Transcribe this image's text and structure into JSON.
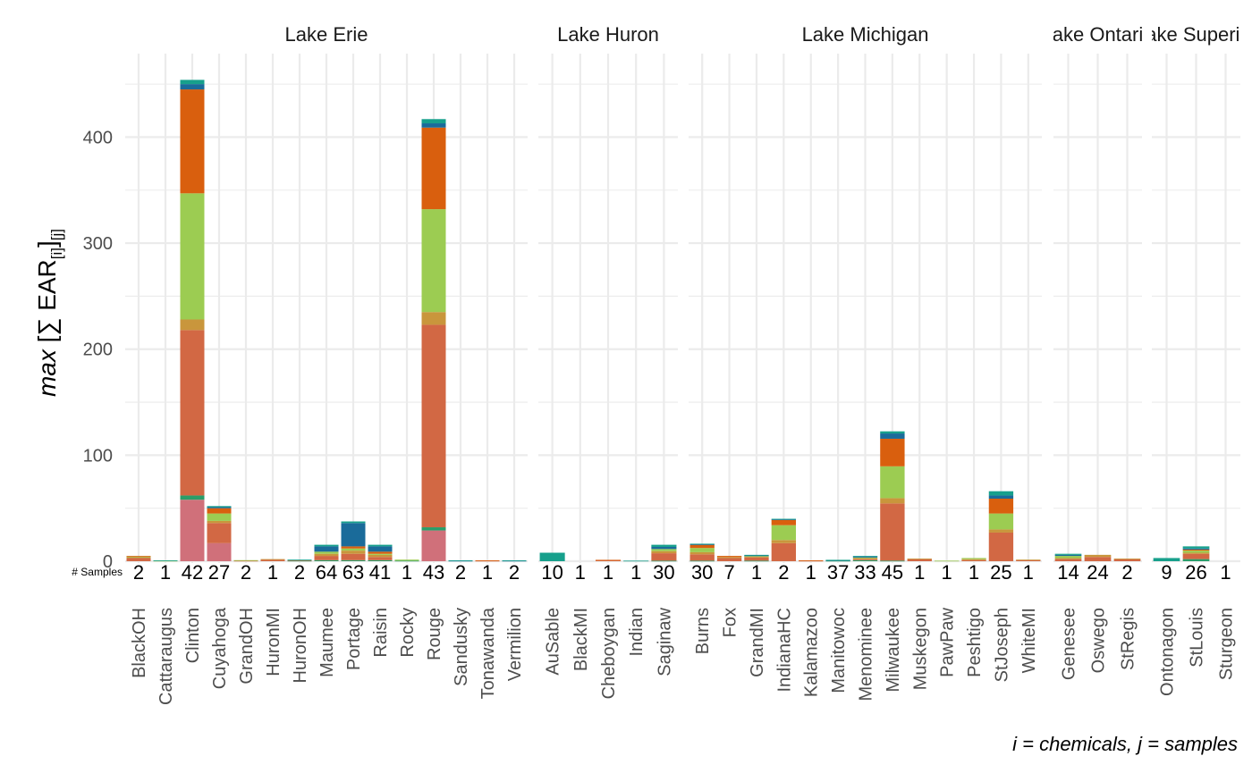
{
  "chart_data": {
    "type": "bar",
    "stacked": true,
    "ylabel_math": "max [∑ EAR[i]][j]",
    "caption": "i = chemicals, j = samples",
    "samples_label": "# Samples",
    "ylim": [
      0,
      470
    ],
    "yticks": [
      0,
      100,
      200,
      300,
      400
    ],
    "grid": true,
    "legend": "none",
    "colors": [
      "#d0707a",
      "#2a9d69",
      "#d26844",
      "#c9963c",
      "#9ccc52",
      "#d95f0e",
      "#1a6b9a",
      "#17a08c"
    ],
    "panels": [
      {
        "title": "Lake Erie",
        "sites": [
          {
            "name": "BlackOH",
            "samples": "2",
            "segments": [
              0,
              0,
              3,
              1,
              0.5,
              0.5,
              0,
              0
            ]
          },
          {
            "name": "Cattaraugus",
            "samples": "1",
            "segments": [
              0,
              0,
              0,
              0,
              0.5,
              0,
              0,
              0.3
            ]
          },
          {
            "name": "Clinton",
            "samples": "42",
            "segments": [
              58,
              4,
              156,
              10,
              119,
              98,
              5,
              4
            ]
          },
          {
            "name": "Cuyahoga",
            "samples": "27",
            "segments": [
              17,
              0,
              19,
              2,
              7,
              5,
              1,
              1
            ]
          },
          {
            "name": "GrandOH",
            "samples": "2",
            "segments": [
              0,
              0,
              0.5,
              0,
              0.5,
              0,
              0,
              0
            ]
          },
          {
            "name": "HuronMI",
            "samples": "1",
            "segments": [
              0,
              0,
              1.5,
              0.5,
              0,
              0,
              0,
              0
            ]
          },
          {
            "name": "HuronOH",
            "samples": "2",
            "segments": [
              0,
              0.5,
              0.5,
              0,
              0,
              0,
              0,
              0.5
            ]
          },
          {
            "name": "Maumee",
            "samples": "64",
            "segments": [
              0,
              1,
              4,
              2,
              2,
              0,
              5,
              1.5
            ]
          },
          {
            "name": "Portage",
            "samples": "63",
            "segments": [
              0,
              1,
              6,
              3,
              2,
              2,
              22,
              1.5
            ]
          },
          {
            "name": "Raisin",
            "samples": "41",
            "segments": [
              0,
              1,
              3,
              2,
              1,
              2,
              5,
              1.5
            ]
          },
          {
            "name": "Rocky",
            "samples": "1",
            "segments": [
              0,
              0.5,
              0,
              0,
              1,
              0,
              0,
              0
            ]
          },
          {
            "name": "Rouge",
            "samples": "43",
            "segments": [
              29,
              3,
              191,
              12,
              97,
              77,
              4,
              4
            ]
          },
          {
            "name": "Sandusky",
            "samples": "2",
            "segments": [
              0,
              0,
              0,
              0,
              0,
              0,
              0.5,
              0.3
            ]
          },
          {
            "name": "Tonawanda",
            "samples": "1",
            "segments": [
              0,
              0,
              0.5,
              0,
              0,
              0.3,
              0,
              0
            ]
          },
          {
            "name": "Vermilion",
            "samples": "2",
            "segments": [
              0,
              0,
              0,
              0,
              0,
              0,
              0.5,
              0.3
            ]
          }
        ]
      },
      {
        "title": "Lake Huron",
        "sites": [
          {
            "name": "AuSable",
            "samples": "10",
            "segments": [
              0,
              0,
              0,
              0,
              0,
              0,
              0,
              8
            ]
          },
          {
            "name": "BlackMI",
            "samples": "1",
            "segments": [
              0,
              0,
              0,
              0,
              0,
              0,
              0,
              0
            ]
          },
          {
            "name": "Cheboygan",
            "samples": "1",
            "segments": [
              0,
              0,
              1,
              0,
              0,
              0.3,
              0,
              0
            ]
          },
          {
            "name": "Indian",
            "samples": "1",
            "segments": [
              0,
              0,
              0,
              0,
              0,
              0,
              0,
              0.5
            ]
          },
          {
            "name": "Saginaw",
            "samples": "30",
            "segments": [
              0,
              0.5,
              7,
              2,
              2,
              0,
              2,
              2
            ]
          }
        ]
      },
      {
        "title": "Lake Michigan",
        "sites": [
          {
            "name": "Burns",
            "samples": "30",
            "segments": [
              0,
              0.5,
              6,
              2,
              4,
              3,
              0.5,
              0.5
            ]
          },
          {
            "name": "Fox",
            "samples": "7",
            "segments": [
              0,
              0,
              3,
              1,
              0,
              1,
              0,
              0
            ]
          },
          {
            "name": "GrandMI",
            "samples": "1",
            "segments": [
              0,
              0.5,
              3,
              1,
              0.5,
              0,
              0.5,
              0.5
            ]
          },
          {
            "name": "IndianaHC",
            "samples": "2",
            "segments": [
              0,
              0,
              17,
              3,
              14,
              5,
              0.5,
              0.5
            ]
          },
          {
            "name": "Kalamazoo",
            "samples": "1",
            "segments": [
              0,
              0,
              0.5,
              0,
              0,
              0.3,
              0,
              0
            ]
          },
          {
            "name": "Manitowoc",
            "samples": "37",
            "segments": [
              0,
              0.5,
              0,
              0,
              0,
              0,
              0.5,
              0.3
            ]
          },
          {
            "name": "Menominee",
            "samples": "33",
            "segments": [
              0,
              1,
              1,
              1,
              0.5,
              0,
              1,
              0.5
            ]
          },
          {
            "name": "Milwaukee",
            "samples": "45",
            "segments": [
              0,
              0.5,
              54,
              5,
              30,
              26,
              5,
              2
            ]
          },
          {
            "name": "Muskegon",
            "samples": "1",
            "segments": [
              0,
              0,
              2,
              0.5,
              0,
              0,
              0,
              0
            ]
          },
          {
            "name": "PawPaw",
            "samples": "1",
            "segments": [
              0,
              0,
              0,
              0,
              0.5,
              0,
              0,
              0
            ]
          },
          {
            "name": "Peshtigo",
            "samples": "1",
            "segments": [
              0,
              0,
              1,
              1,
              1,
              0,
              0,
              0
            ]
          },
          {
            "name": "StJoseph",
            "samples": "25",
            "segments": [
              0,
              0,
              27,
              3,
              15,
              14,
              3,
              4
            ]
          },
          {
            "name": "WhiteMI",
            "samples": "1",
            "segments": [
              0,
              0,
              1,
              0.5,
              0,
              0,
              0,
              0
            ]
          }
        ]
      },
      {
        "title": "Lake Ontario",
        "sites": [
          {
            "name": "Genesee",
            "samples": "14",
            "segments": [
              0,
              0,
              2,
              1,
              2,
              0,
              1,
              1
            ]
          },
          {
            "name": "Oswego",
            "samples": "24",
            "segments": [
              0,
              0,
              4,
              2,
              0,
              0,
              0,
              0
            ]
          },
          {
            "name": "StRegis",
            "samples": "2",
            "segments": [
              0,
              0,
              2,
              0.5,
              0,
              0,
              0,
              0
            ]
          }
        ]
      },
      {
        "title": "Lake Superior",
        "sites": [
          {
            "name": "Ontonagon",
            "samples": "9",
            "segments": [
              0,
              0,
              0,
              0,
              0,
              0,
              0,
              3
            ]
          },
          {
            "name": "StLouis",
            "samples": "26",
            "segments": [
              0,
              2,
              5,
              1,
              2,
              1,
              1,
              2
            ]
          },
          {
            "name": "Sturgeon",
            "samples": "1",
            "segments": [
              0,
              0,
              0,
              0,
              0,
              0,
              0,
              0
            ]
          }
        ]
      }
    ]
  }
}
